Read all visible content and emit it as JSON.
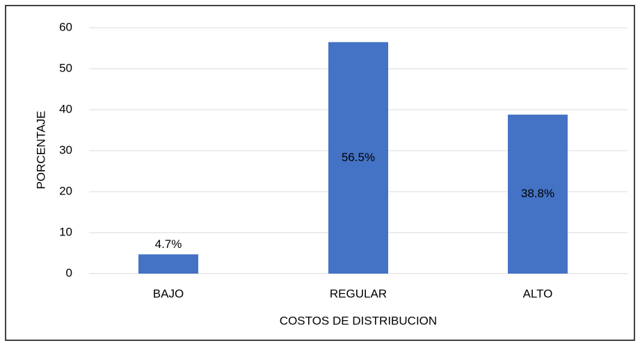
{
  "chart_data": {
    "type": "bar",
    "x_label": "COSTOS DE DISTRIBUCION",
    "y_label": "PORCENTAJE",
    "categories": [
      "BAJO",
      "REGULAR",
      "ALTO"
    ],
    "values": [
      4.7,
      56.5,
      38.8
    ],
    "value_labels": [
      "4.7%",
      "56.5%",
      "38.8%"
    ],
    "color": "#4472c4",
    "ylim": [
      0,
      60
    ],
    "yticks": [
      0,
      10,
      20,
      30,
      40,
      50,
      60
    ],
    "grid": true
  }
}
